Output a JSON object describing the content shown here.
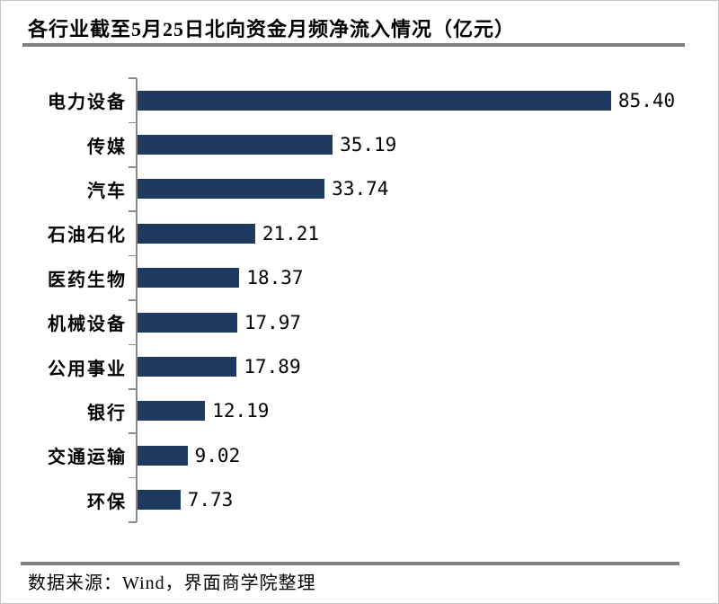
{
  "title": "各行业截至5月25日北向资金月频净流入情况（亿元）",
  "source_note": "数据来源：Wind，界面商学院整理",
  "colors": {
    "bar": "#1e3a61",
    "divider": "#808080",
    "axis": "#8a8a8a",
    "text": "#000000",
    "border": "#c6c6c6"
  },
  "chart_data": {
    "type": "bar",
    "orientation": "horizontal",
    "title": "各行业截至5月25日北向资金月频净流入情况（亿元）",
    "unit": "亿元",
    "categories": [
      "电力设备",
      "传媒",
      "汽车",
      "石油石化",
      "医药生物",
      "机械设备",
      "公用事业",
      "银行",
      "交通运输",
      "环保"
    ],
    "values": [
      85.4,
      35.19,
      33.74,
      21.21,
      18.37,
      17.97,
      17.89,
      12.19,
      9.02,
      7.73
    ],
    "value_labels": [
      "85.40",
      "35.19",
      "33.74",
      "21.21",
      "18.37",
      "17.97",
      "17.89",
      "12.19",
      "9.02",
      "7.73"
    ],
    "xlabel": "",
    "ylabel": "",
    "xlim": [
      0,
      92
    ],
    "grid": false,
    "legend": false,
    "data_labels": "end-of-bar",
    "source": "数据来源：Wind，界面商学院整理"
  }
}
